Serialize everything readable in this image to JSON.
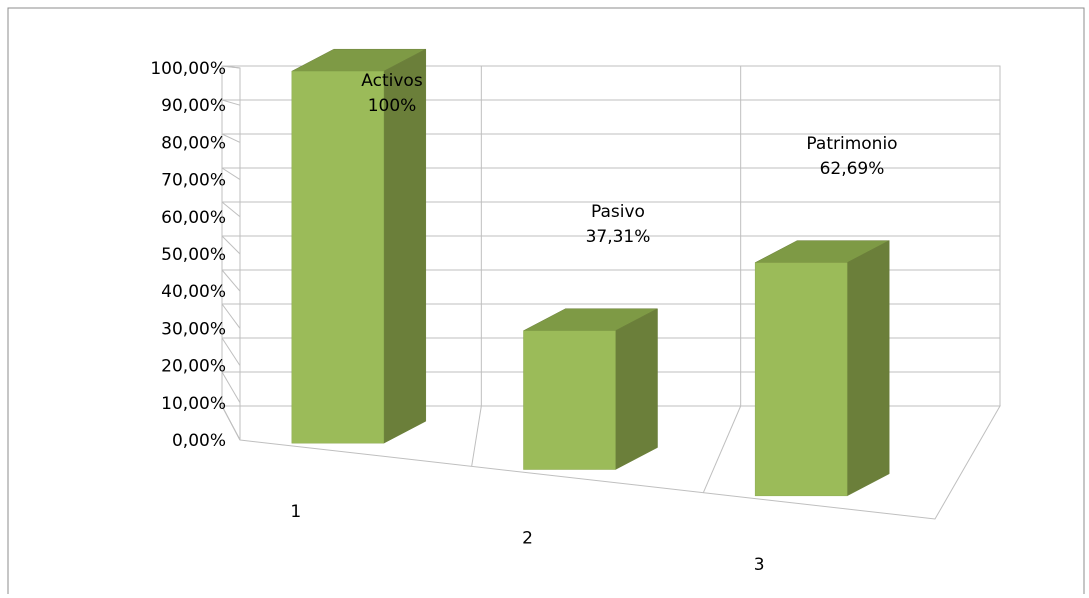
{
  "chart_data": {
    "type": "bar",
    "three_d": true,
    "categories": [
      "1",
      "2",
      "3"
    ],
    "values": [
      100,
      37.31,
      62.69
    ],
    "value_unit": "%",
    "y_ticks": [
      "0,00%",
      "10,00%",
      "20,00%",
      "30,00%",
      "40,00%",
      "50,00%",
      "60,00%",
      "70,00%",
      "80,00%",
      "90,00%",
      "100,00%"
    ],
    "ylim": [
      0,
      100
    ],
    "grid": true,
    "legend": "none",
    "title": "",
    "xlabel": "",
    "ylabel": "",
    "data_labels": [
      {
        "name": "Activos",
        "value": "100%"
      },
      {
        "name": "Pasivo",
        "value": "37,31%"
      },
      {
        "name": "Patrimonio",
        "value": "62,69%"
      }
    ],
    "colors": {
      "bar_front": "#9bbb59",
      "bar_side": "#6b7f3a",
      "bar_top": "#7e9a45",
      "grid": "#bfbfbf",
      "text": "#000000"
    }
  }
}
